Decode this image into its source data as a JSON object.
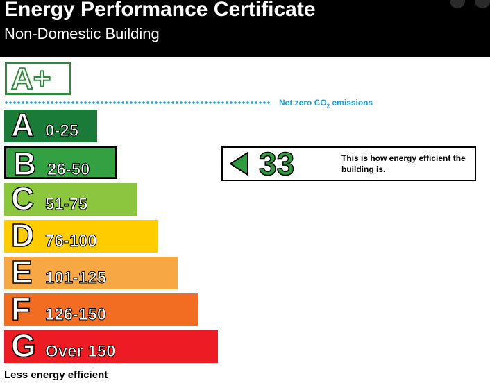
{
  "header": {
    "title": "Energy Performance Certificate",
    "subtitle": "Non-Domestic Building"
  },
  "aplus": {
    "label": "A+"
  },
  "net_zero": {
    "text": "Net zero CO",
    "subscript": "2",
    "suffix": " emissions"
  },
  "bands": [
    {
      "letter": "A",
      "range": "0-25",
      "color": "#1a7a37",
      "width": 134
    },
    {
      "letter": "B",
      "range": "26-50",
      "color": "#33a141",
      "width": 163
    },
    {
      "letter": "C",
      "range": "51-75",
      "color": "#8cc63f",
      "width": 192
    },
    {
      "letter": "D",
      "range": "76-100",
      "color": "#ffcc00",
      "width": 221
    },
    {
      "letter": "E",
      "range": "101-125",
      "color": "#f7a844",
      "width": 250
    },
    {
      "letter": "F",
      "range": "126-150",
      "color": "#f26c21",
      "width": 279
    },
    {
      "letter": "G",
      "range": "Over 150",
      "color": "#ed1c24",
      "width": 308
    }
  ],
  "rating": {
    "score": "33",
    "band": "B",
    "color": "#2e9b3e",
    "description": "This is how energy efficient the building is."
  },
  "footer": {
    "label": "Less energy efficient"
  }
}
